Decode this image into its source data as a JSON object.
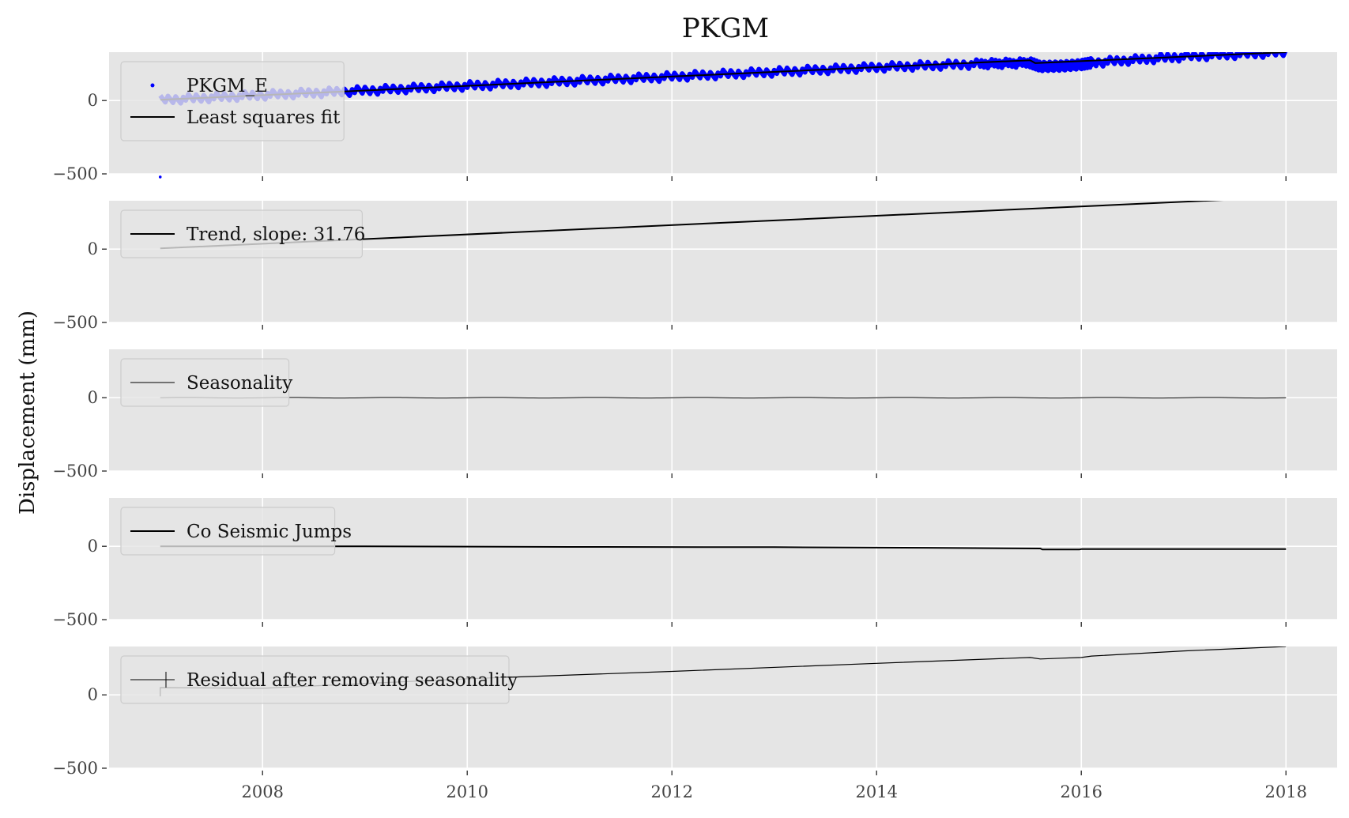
{
  "chart_data": {
    "type": "line",
    "title": "PKGM",
    "ylabel": "Displacement (mm)",
    "xlabel": "",
    "xlim": [
      2006.5,
      2018.5
    ],
    "ylim": [
      -500,
      330
    ],
    "x_ticks": [
      2008,
      2010,
      2012,
      2014,
      2016,
      2018
    ],
    "y_ticks": [
      0,
      -500
    ],
    "y_tick_labels": [
      "0",
      "−500"
    ],
    "grid": true,
    "legend_position": "upper-left",
    "panels": [
      {
        "id": "observed",
        "legend": [
          "PKGM_E",
          "Least squares fit"
        ],
        "series": [
          {
            "name": "PKGM_E",
            "style": "points",
            "color": "#0000ff",
            "x": [
              2007.0,
              2008.0,
              2009.0,
              2010.0,
              2011.0,
              2012.0,
              2013.0,
              2014.0,
              2015.0,
              2015.5,
              2015.6,
              2015.8,
              2016.0,
              2016.1,
              2017.0,
              2018.0
            ],
            "y": [
              5,
              37,
              68,
              100,
              132,
              163,
              195,
              227,
              250,
              258,
              232,
              235,
              245,
              258,
              300,
              330
            ]
          },
          {
            "name": "Least squares fit",
            "style": "line",
            "color": "#000000",
            "x": [
              2007.0,
              2015.5,
              2015.55,
              2018.0
            ],
            "y": [
              5,
              275,
              255,
              330
            ]
          }
        ],
        "outlier": {
          "x": 2007.0,
          "y": -505
        }
      },
      {
        "id": "trend",
        "legend": [
          "Trend, slope: 31.76"
        ],
        "series": [
          {
            "name": "Trend, slope: 31.76",
            "style": "line",
            "color": "#000000",
            "x": [
              2007.0,
              2018.0
            ],
            "y": [
              5,
              355
            ]
          }
        ]
      },
      {
        "id": "seasonality",
        "legend": [
          "Seasonality"
        ],
        "series": [
          {
            "name": "Seasonality",
            "style": "line",
            "color": "#000000",
            "x": [
              2007.0,
              2018.0
            ],
            "y": [
              0,
              0
            ],
            "amplitude": 2
          }
        ]
      },
      {
        "id": "jumps",
        "legend": [
          "Co Seismic Jumps"
        ],
        "series": [
          {
            "name": "Co Seismic Jumps",
            "style": "line",
            "color": "#000000",
            "x": [
              2007.0,
              2009.0,
              2011.0,
              2013.0,
              2014.5,
              2015.6,
              2015.62,
              2015.98,
              2016.0,
              2018.0
            ],
            "y": [
              0,
              0,
              -4,
              -6,
              -10,
              -15,
              -22,
              -22,
              -19,
              -19
            ]
          }
        ]
      },
      {
        "id": "residual",
        "legend": [
          "Residual after removing seasonality"
        ],
        "series": [
          {
            "name": "Residual after removing seasonality",
            "style": "line",
            "color": "#000000",
            "x": [
              2007.0,
              2007.0,
              2008.0,
              2010.0,
              2012.0,
              2014.0,
              2015.5,
              2015.6,
              2015.8,
              2016.0,
              2016.1,
              2017.0,
              2018.0
            ],
            "y": [
              -10,
              50,
              45,
              110,
              160,
              215,
              255,
              245,
              250,
              255,
              265,
              300,
              330
            ]
          }
        ]
      }
    ]
  }
}
